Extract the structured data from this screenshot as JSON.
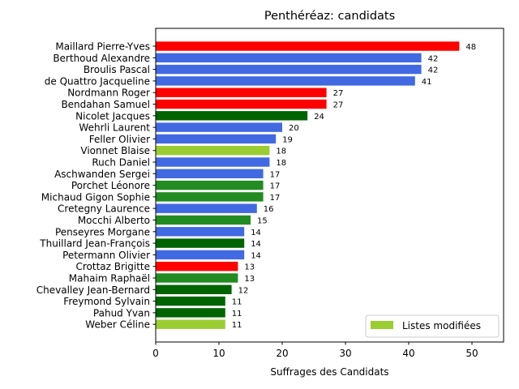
{
  "chart_data": {
    "type": "bar",
    "orientation": "horizontal",
    "title": "Penthéréaz: candidats",
    "xlabel": "Suffrages des Candidats",
    "ylabel": "",
    "xlim": [
      0,
      55
    ],
    "xticks": [
      0,
      10,
      20,
      30,
      40,
      50
    ],
    "grid": false,
    "legend": {
      "position": "bottom-right",
      "entries": [
        {
          "label": "Listes modifiées",
          "color": "#9acd32"
        }
      ]
    },
    "categories": [
      "Maillard Pierre-Yves",
      "Berthoud Alexandre",
      "Broulis Pascal",
      "de Quattro Jacqueline",
      "Nordmann Roger",
      "Bendahan Samuel",
      "Nicolet Jacques",
      "Wehrli Laurent",
      "Feller Olivier",
      "Vionnet Blaise",
      "Ruch Daniel",
      "Aschwanden Sergei",
      "Porchet Léonore",
      "Michaud Gigon Sophie",
      "Cretegny Laurence",
      "Mocchi Alberto",
      "Penseyres Morgane",
      "Thuillard Jean-François",
      "Petermann Olivier",
      "Crottaz Brigitte",
      "Mahaim Raphaël",
      "Chevalley Jean-Bernard",
      "Freymond Sylvain",
      "Pahud Yvan",
      "Weber Céline"
    ],
    "values": [
      48,
      42,
      42,
      41,
      27,
      27,
      24,
      20,
      19,
      18,
      18,
      17,
      17,
      17,
      16,
      15,
      14,
      14,
      14,
      13,
      13,
      12,
      11,
      11,
      11
    ],
    "colors": [
      "#ff0000",
      "#4169e1",
      "#4169e1",
      "#4169e1",
      "#ff0000",
      "#ff0000",
      "#006400",
      "#4169e1",
      "#4169e1",
      "#9acd32",
      "#4169e1",
      "#4169e1",
      "#228b22",
      "#228b22",
      "#4169e1",
      "#228b22",
      "#4169e1",
      "#006400",
      "#4169e1",
      "#ff0000",
      "#228b22",
      "#006400",
      "#006400",
      "#006400",
      "#9acd32"
    ]
  }
}
